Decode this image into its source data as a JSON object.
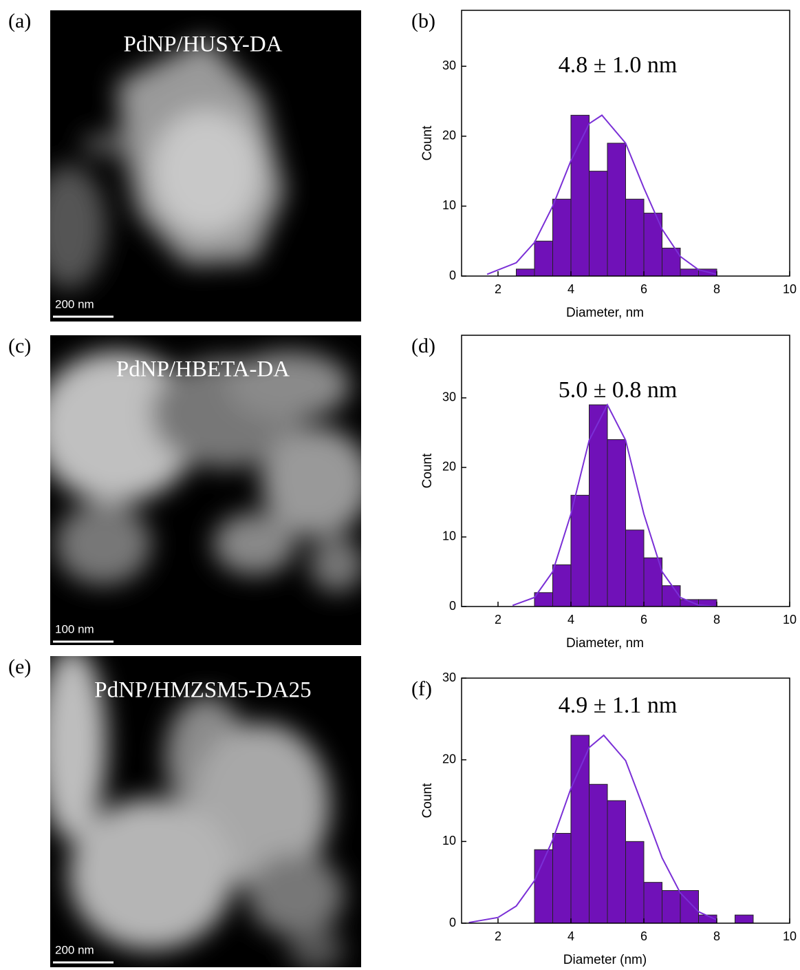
{
  "images": [
    {
      "label": "(a)",
      "title": "PdNP/HUSY-DA",
      "scale_bar": "200 nm"
    },
    {
      "label": "(c)",
      "title": "PdNP/HBETA-DA",
      "scale_bar": "100 nm"
    },
    {
      "label": "(e)",
      "title": "PdNP/HMZSM5-DA25",
      "scale_bar": "200 nm"
    }
  ],
  "chart_data": [
    {
      "type": "histogram",
      "label": "(b)",
      "title": "4.8 ± 1.0 nm",
      "x_label": "Diameter, nm",
      "y_label": "Count",
      "bins": [
        2.5,
        3,
        3.5,
        4,
        4.5,
        5,
        5.5,
        6,
        6.5,
        7,
        7.5,
        8
      ],
      "counts": [
        1,
        5,
        11,
        23,
        15,
        19,
        11,
        9,
        4,
        1,
        1
      ],
      "color": "#7011b8",
      "fit": {
        "x": [
          1.7,
          2.5,
          3,
          3.5,
          4,
          4.5,
          4.85,
          5.5,
          6,
          6.5,
          7,
          7.5,
          8
        ],
        "values": [
          0.25,
          1.9,
          4.8,
          10,
          16.5,
          21.8,
          23,
          19,
          12.6,
          6.7,
          2.8,
          0.9,
          0.25
        ],
        "color": "#7a2fd6"
      },
      "xlim": [
        1,
        10
      ],
      "xticks": [
        2,
        4,
        6,
        8,
        10
      ],
      "ylim": [
        0,
        38
      ],
      "yticks": [
        0,
        10,
        20,
        30
      ]
    },
    {
      "type": "histogram",
      "label": "(d)",
      "title": "5.0 ± 0.8 nm",
      "x_label": "Diameter, nm",
      "y_label": "Count",
      "bins": [
        3,
        3.5,
        4,
        4.5,
        5,
        5.5,
        6,
        6.5,
        7,
        7.5,
        8
      ],
      "counts": [
        2,
        6,
        16,
        29,
        24,
        11,
        7,
        3,
        1,
        1
      ],
      "color": "#7011b8",
      "fit": {
        "x": [
          2.4,
          3,
          3.5,
          4,
          4.5,
          5,
          5.5,
          6,
          6.5,
          7,
          7.5,
          8
        ],
        "values": [
          0.15,
          1.3,
          5,
          13.3,
          23.9,
          29,
          23.9,
          13.3,
          5,
          1.3,
          0.2,
          0.03
        ],
        "color": "#7a2fd6"
      },
      "xlim": [
        1,
        10
      ],
      "xticks": [
        2,
        4,
        6,
        8,
        10
      ],
      "ylim": [
        0,
        39
      ],
      "yticks": [
        0,
        10,
        20,
        30
      ]
    },
    {
      "type": "histogram",
      "label": "(f)",
      "title": "4.9 ± 1.1 nm",
      "x_label": "Diameter (nm)",
      "y_label": "Count",
      "bins": [
        3,
        3.5,
        4,
        4.5,
        5,
        5.5,
        6,
        6.5,
        7,
        7.5,
        8,
        8.5,
        9
      ],
      "counts": [
        9,
        11,
        23,
        17,
        15,
        10,
        5,
        4,
        4,
        1,
        0,
        1
      ],
      "color": "#7011b8",
      "fit": {
        "x": [
          1.2,
          2,
          2.5,
          3,
          3.5,
          4,
          4.5,
          4.9,
          5.5,
          6,
          6.5,
          7,
          7.5,
          8
        ],
        "values": [
          0.08,
          0.7,
          2.1,
          5.2,
          10.2,
          16.5,
          21.5,
          23,
          19.9,
          14,
          8,
          3.7,
          1.4,
          0.4
        ],
        "color": "#7a2fd6"
      },
      "xlim": [
        1,
        10
      ],
      "xticks": [
        2,
        4,
        6,
        8,
        10
      ],
      "ylim": [
        0,
        30
      ],
      "yticks": [
        0,
        10,
        20,
        30
      ]
    }
  ]
}
